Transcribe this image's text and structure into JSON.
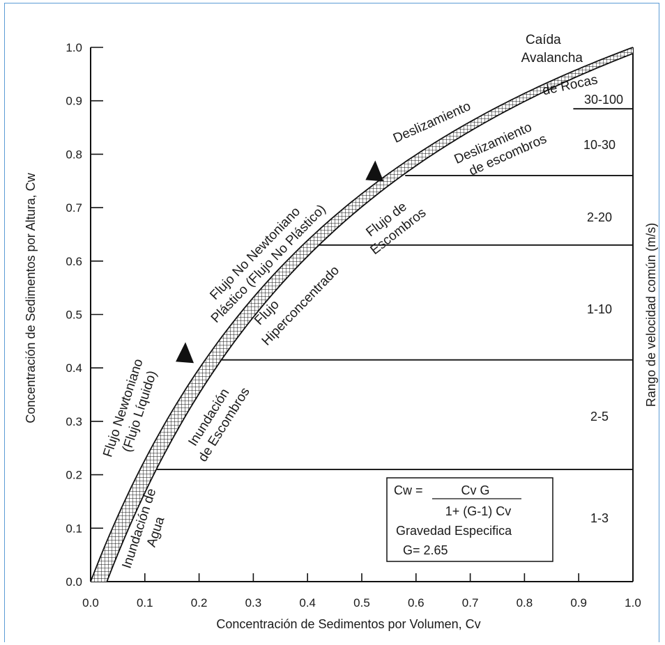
{
  "chart_data": {
    "type": "line",
    "xlabel": "Concentración de  Sedimentos por Volumen, Cv",
    "ylabel": "Concentración de  Sedimentos por Altura, Cw",
    "ylabel_right": "Rango de velocidad común (m/s)",
    "xlim": [
      0.0,
      1.0
    ],
    "ylim": [
      0.0,
      1.0
    ],
    "x_ticks": [
      "0.0",
      "0.1",
      "0.2",
      "0.3",
      "0.4",
      "0.5",
      "0.6",
      "0.7",
      "0.8",
      "0.9",
      "1.0"
    ],
    "y_ticks": [
      "0.0",
      "0.1",
      "0.2",
      "0.3",
      "0.4",
      "0.5",
      "0.6",
      "0.7",
      "0.8",
      "0.9",
      "1.0"
    ],
    "band": {
      "formula": "Cw = Cv G / (1 + (G-1) Cv)",
      "G": 2.65,
      "x_offset": 0.03
    },
    "boundaries": [
      {
        "cw": 0.21,
        "x_start": 0.11
      },
      {
        "cw": 0.415,
        "x_start": 0.24
      },
      {
        "cw": 0.63,
        "x_start": 0.41
      },
      {
        "cw": 0.76,
        "x_start": 0.58
      },
      {
        "cw": 0.885,
        "x_start": 0.89
      }
    ],
    "speed_ranges": [
      "1-3",
      "2-5",
      "1-10",
      "2-20",
      "10-30",
      "30-100"
    ],
    "region_labels": {
      "upper": [
        {
          "id": "flujo-newtoniano",
          "lines": [
            "Flujo Newtoniano",
            "(Flujo Líquido)"
          ]
        },
        {
          "id": "flujo-no-newtoniano",
          "lines": [
            "Flujo No Newtoniano",
            "Plástico (Flujo No Plástico)"
          ]
        },
        {
          "id": "deslizamiento",
          "lines": [
            "Deslizamiento"
          ]
        },
        {
          "id": "caida",
          "lines": [
            "Caída",
            "Avalancha",
            "de Rocas"
          ]
        }
      ],
      "lower": [
        {
          "id": "inundacion-agua",
          "lines": [
            "Inundación de",
            "Agua"
          ]
        },
        {
          "id": "inundacion-escombros",
          "lines": [
            "Inundación",
            "de Escombros"
          ]
        },
        {
          "id": "flujo-hiperconcentrado",
          "lines": [
            "Flujo",
            "Hiperconcentrado"
          ]
        },
        {
          "id": "flujo-escombros",
          "lines": [
            "Flujo de",
            "Escombros"
          ]
        },
        {
          "id": "deslizamiento-escombros",
          "lines": [
            "Deslizamiento",
            "de escombros"
          ]
        }
      ]
    },
    "formula_box": {
      "lhs": "Cw =",
      "numerator": "Cv G",
      "denominator": "1+ (G-1) Cv",
      "line3": "Gravedad Especifica",
      "line4": "G= 2.65"
    },
    "markers": [
      {
        "cv": 0.18,
        "cw": 0.43
      },
      {
        "cv": 0.53,
        "cw": 0.77
      }
    ]
  }
}
